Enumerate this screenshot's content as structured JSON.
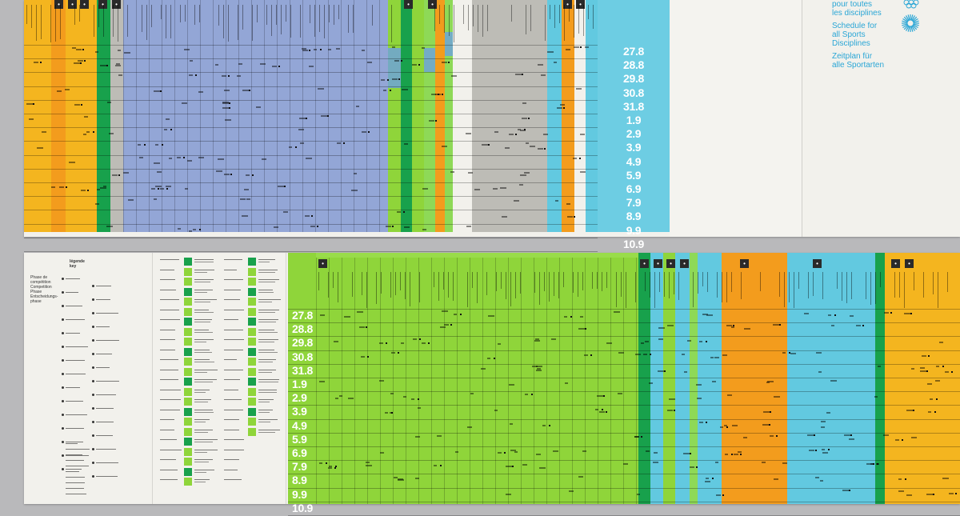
{
  "schedule_title": {
    "fr": [
      "pour toutes",
      "les disciplines"
    ],
    "en": [
      "Schedule for",
      "all Sports",
      "Disciplines"
    ],
    "de": [
      "Zeitplan für",
      "alle Sportarten"
    ]
  },
  "dates": [
    "27.8",
    "28.8",
    "29.8",
    "30.8",
    "31.8",
    "1.9",
    "2.9",
    "3.9",
    "4.9",
    "5.9",
    "6.9",
    "7.9",
    "8.9",
    "9.9",
    "10.9"
  ],
  "key": {
    "heading_fr": "légende",
    "heading_en": "key",
    "phase": [
      "Phase de",
      "compétition",
      "Competition",
      "Phase",
      "Entscheidungs-",
      "phase"
    ]
  },
  "colors": {
    "yellow": "#f4b51f",
    "orange": "#f39c1d",
    "grey": "#bdbcb6",
    "blue": "#93a6d6",
    "green": "#8fd53a",
    "darkgreen": "#18a14c",
    "cyan": "#62c9e0",
    "lightgreen": "#8ed957",
    "paper": "#f2f1ec",
    "title_blue": "#2aa6d6"
  },
  "icons": [
    "olympic-rings-icon",
    "munich-sun-emblem-icon",
    "sport-pictogram-icon"
  ]
}
